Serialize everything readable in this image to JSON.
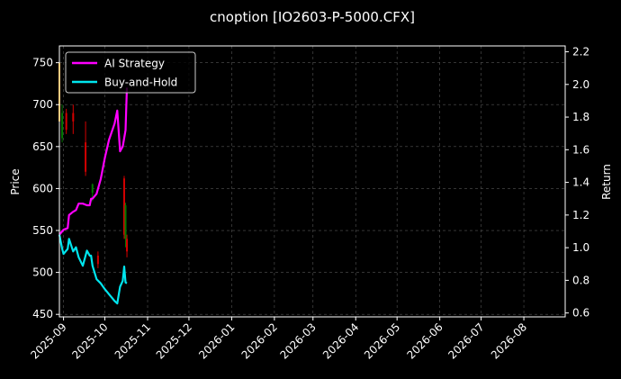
{
  "chart_data": {
    "type": "line",
    "title": "cnoption [IO2603-P-5000.CFX]",
    "xlabel": "",
    "ylabel": "Price",
    "y2label": "Return",
    "xlim": [
      "2025-08-29",
      "2026-08-31"
    ],
    "ylim": [
      447,
      770
    ],
    "y2lim": [
      0.576,
      2.236
    ],
    "x_ticks": [
      "2025-09",
      "2025-10",
      "2025-11",
      "2025-12",
      "2026-01",
      "2026-02",
      "2026-03",
      "2026-04",
      "2026-05",
      "2026-06",
      "2026-07",
      "2026-08"
    ],
    "y_ticks": [
      450,
      500,
      550,
      600,
      650,
      700,
      750
    ],
    "y2_ticks": [
      0.6,
      0.8,
      1.0,
      1.2,
      1.4,
      1.6,
      1.8,
      2.0,
      2.2
    ],
    "grid": true,
    "legend_position": "top-left",
    "candles": [
      {
        "date": "2025-08-29",
        "open": 750,
        "close": 680,
        "high": 755,
        "low": 670,
        "color": "#ff9900"
      },
      {
        "date": "2025-08-31",
        "open": 690,
        "close": 660,
        "high": 700,
        "low": 655,
        "color": "#007a00"
      },
      {
        "date": "2025-09-03",
        "open": 690,
        "close": 670,
        "high": 695,
        "low": 665,
        "color": "#d40000"
      },
      {
        "date": "2025-09-08",
        "open": 690,
        "close": 680,
        "high": 700,
        "low": 665,
        "color": "#d40000"
      },
      {
        "date": "2025-09-17",
        "open": 655,
        "close": 620,
        "high": 680,
        "low": 615,
        "color": "#d40000"
      },
      {
        "date": "2025-09-22",
        "open": 605,
        "close": 595,
        "high": 606,
        "low": 585,
        "color": "#007a00"
      },
      {
        "date": "2025-09-26",
        "open": 520,
        "close": 510,
        "high": 525,
        "low": 505,
        "color": "#d40000"
      },
      {
        "date": "2025-10-15",
        "open": 612,
        "close": 545,
        "high": 615,
        "low": 540,
        "color": "#d40000"
      },
      {
        "date": "2025-10-16",
        "open": 580,
        "close": 540,
        "high": 583,
        "low": 530,
        "color": "#007a00"
      },
      {
        "date": "2025-10-17",
        "open": 540,
        "close": 525,
        "high": 545,
        "low": 518,
        "color": "#d40000"
      }
    ],
    "series": [
      {
        "name": "AI Strategy",
        "color": "#ff00ff",
        "axis": "right",
        "x": [
          "2025-08-29",
          "2025-08-31",
          "2025-09-01",
          "2025-09-04",
          "2025-09-05",
          "2025-09-08",
          "2025-09-10",
          "2025-09-12",
          "2025-09-15",
          "2025-09-18",
          "2025-09-20",
          "2025-09-21",
          "2025-09-22",
          "2025-09-25",
          "2025-09-28",
          "2025-10-01",
          "2025-10-04",
          "2025-10-08",
          "2025-10-10",
          "2025-10-12",
          "2025-10-14",
          "2025-10-16",
          "2025-10-17"
        ],
        "values": [
          1.08,
          1.1,
          1.11,
          1.12,
          1.2,
          1.22,
          1.23,
          1.27,
          1.27,
          1.26,
          1.26,
          1.3,
          1.3,
          1.33,
          1.42,
          1.55,
          1.66,
          1.76,
          1.84,
          1.59,
          1.62,
          1.72,
          1.98
        ]
      },
      {
        "name": "Buy-and-Hold",
        "color": "#00e5ee",
        "axis": "left",
        "x": [
          "2025-08-29",
          "2025-08-31",
          "2025-09-01",
          "2025-09-04",
          "2025-09-05",
          "2025-09-08",
          "2025-09-10",
          "2025-09-12",
          "2025-09-15",
          "2025-09-18",
          "2025-09-20",
          "2025-09-21",
          "2025-09-22",
          "2025-09-25",
          "2025-09-28",
          "2025-10-01",
          "2025-10-04",
          "2025-10-08",
          "2025-10-10",
          "2025-10-12",
          "2025-10-14",
          "2025-10-15",
          "2025-10-16",
          "2025-10-17"
        ],
        "values": [
          545,
          528,
          522,
          528,
          540,
          525,
          530,
          518,
          508,
          526,
          520,
          520,
          508,
          492,
          487,
          480,
          474,
          466,
          463,
          483,
          490,
          507,
          488,
          487
        ]
      }
    ]
  }
}
